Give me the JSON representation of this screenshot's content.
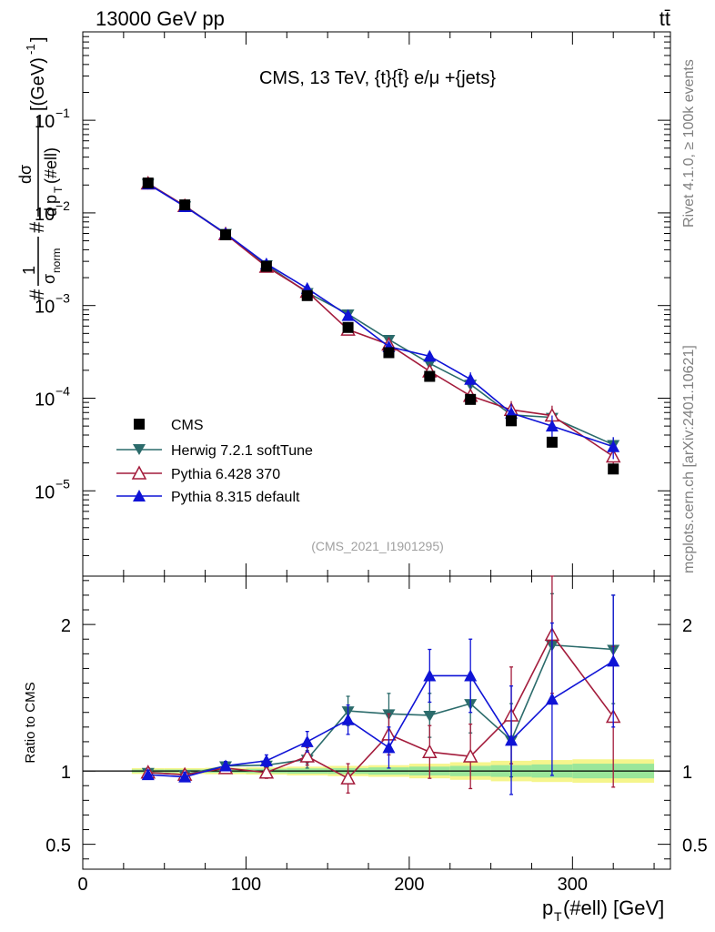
{
  "header": {
    "left_label": "13000 GeV pp",
    "right_label": "tt̄"
  },
  "side_labels": {
    "rivet": "Rivet 4.1.0, ≥ 100k events",
    "mcplots": "mcplots.cern.ch [arXiv:2401.10621]"
  },
  "chart_data": [
    {
      "type": "scatter",
      "panel": "main",
      "title": "CMS, 13 TeV, {t}{t̄} e/μ +{jets}",
      "watermark": "(CMS_2021_I1901295)",
      "ylabel": "#1/σnorm # dσ/d pT(#ell) [(GeV)^-1]",
      "ylabel_parts": {
        "hash1": "#",
        "one": "1",
        "sigma_norm": "σ",
        "norm_sub": "norm",
        "hash2": "#",
        "dsigma": "dσ",
        "d": "d",
        "p": "p",
        "T": "T",
        "ell": "(#ell)",
        "unit_open": "[(GeV)",
        "unit_exp": "-1",
        "unit_close": "]"
      },
      "yscale": "log",
      "xlim": [
        0,
        360
      ],
      "ylim": [
        1.2e-06,
        0.9
      ],
      "y_ticks": [
        {
          "mantissa": "10",
          "exp": "−5",
          "value": 1e-05
        },
        {
          "mantissa": "10",
          "exp": "−4",
          "value": 0.0001
        },
        {
          "mantissa": "10",
          "exp": "−3",
          "value": 0.001
        },
        {
          "mantissa": "10",
          "exp": "−2",
          "value": 0.01
        },
        {
          "mantissa": "10",
          "exp": "−1",
          "value": 0.1
        }
      ],
      "legend_position": "lower-left",
      "x": [
        40,
        62.5,
        87.5,
        112.5,
        137.5,
        162.5,
        187.5,
        212.5,
        237.5,
        262.5,
        287.5,
        325
      ],
      "series": [
        {
          "name": "CMS",
          "color": "#000000",
          "marker": "square",
          "values": [
            0.021,
            0.0122,
            0.0058,
            0.00265,
            0.00128,
            0.00058,
            0.00031,
            0.000172,
            9.7e-05,
            5.7e-05,
            3.35e-05,
            1.72e-05
          ],
          "xerr": [
            10,
            12.5,
            12.5,
            12.5,
            12.5,
            12.5,
            12.5,
            12.5,
            12.5,
            12.5,
            12.5,
            25
          ]
        },
        {
          "name": "Herwig 7.2.1 softTune",
          "color": "#2b6b6b",
          "marker": "triangle-down",
          "values": [
            0.0208,
            0.0119,
            0.006,
            0.00275,
            0.00138,
            0.00081,
            0.00043,
            0.000237,
            0.000141,
            6.6e-05,
            6.2e-05,
            3.15e-05
          ],
          "yerr": [
            0.0006,
            0.0003,
            0.0002,
            8e-05,
            5e-05,
            4e-05,
            3e-05,
            2e-05,
            2e-05,
            1e-05,
            1e-05,
            6e-06
          ]
        },
        {
          "name": "Pythia 6.428 370",
          "color": "#a31b3b",
          "marker": "triangle-open",
          "values": [
            0.0208,
            0.0119,
            0.0059,
            0.00263,
            0.00141,
            0.00055,
            0.00038,
            0.000195,
            0.000106,
            7.5e-05,
            6.5e-05,
            2.35e-05
          ],
          "yerr": [
            0.0006,
            0.0003,
            0.0002,
            8e-05,
            5e-05,
            4e-05,
            3e-05,
            2e-05,
            2e-05,
            1.8e-05,
            1.8e-05,
            8e-06
          ]
        },
        {
          "name": "Pythia 8.315 default",
          "color": "#0f13d6",
          "marker": "triangle",
          "values": [
            0.0205,
            0.0117,
            0.006,
            0.00282,
            0.00153,
            0.00078,
            0.00036,
            0.000284,
            0.00016,
            6.9e-05,
            5e-05,
            3e-05
          ],
          "yerr": [
            0.0006,
            0.0003,
            0.0002,
            8e-05,
            5e-05,
            4e-05,
            3e-05,
            3e-05,
            3e-05,
            1.8e-05,
            1.5e-05,
            8e-06
          ]
        }
      ]
    },
    {
      "type": "line",
      "panel": "ratio",
      "ylabel": "Ratio to CMS",
      "xlabel": "pT(#ell) [GeV]",
      "xlabel_parts": {
        "p": "p",
        "T": "T",
        "rest": "(#ell) [GeV]"
      },
      "ylim": [
        0.33,
        2.33
      ],
      "y_ticks": [
        {
          "label": "0.5",
          "value": 0.5
        },
        {
          "label": "1",
          "value": 1
        },
        {
          "label": "2",
          "value": 2
        }
      ],
      "x_ticks": [
        {
          "label": "0",
          "value": 0
        },
        {
          "label": "100",
          "value": 100
        },
        {
          "label": "200",
          "value": 200
        },
        {
          "label": "300",
          "value": 300
        }
      ],
      "xlim": [
        0,
        360
      ],
      "x": [
        40,
        62.5,
        87.5,
        112.5,
        137.5,
        162.5,
        187.5,
        212.5,
        237.5,
        262.5,
        287.5,
        325
      ],
      "band_edges": [
        30,
        50,
        75,
        100,
        125,
        150,
        175,
        200,
        225,
        250,
        275,
        300,
        350
      ],
      "uncertainty_inner": [
        0.01,
        0.01,
        0.012,
        0.015,
        0.018,
        0.02,
        0.025,
        0.03,
        0.035,
        0.04,
        0.045,
        0.05
      ],
      "uncertainty_outer": [
        0.02,
        0.02,
        0.022,
        0.025,
        0.03,
        0.035,
        0.04,
        0.05,
        0.06,
        0.07,
        0.075,
        0.08
      ],
      "series": [
        {
          "name": "Herwig 7.2.1 softTune",
          "color": "#2b6b6b",
          "marker": "triangle-down",
          "values": [
            0.99,
            0.975,
            1.035,
            1.04,
            1.08,
            1.41,
            1.39,
            1.38,
            1.46,
            1.21,
            1.86,
            1.83
          ],
          "yerr": [
            0.03,
            0.03,
            0.03,
            0.04,
            0.06,
            0.1,
            0.14,
            0.15,
            0.2,
            0.25,
            0.35,
            0.37
          ]
        },
        {
          "name": "Pythia 6.428 370",
          "color": "#a31b3b",
          "marker": "triangle-open",
          "values": [
            0.99,
            0.975,
            1.02,
            0.99,
            1.1,
            0.95,
            1.25,
            1.13,
            1.1,
            1.38,
            1.93,
            1.37
          ],
          "yerr": [
            0.03,
            0.03,
            0.03,
            0.04,
            0.06,
            0.1,
            0.14,
            0.18,
            0.22,
            0.33,
            0.4,
            0.48
          ]
        },
        {
          "name": "Pythia 8.315 default",
          "color": "#0f13d6",
          "marker": "triangle",
          "values": [
            0.975,
            0.96,
            1.035,
            1.07,
            1.2,
            1.35,
            1.16,
            1.65,
            1.65,
            1.21,
            1.49,
            1.75
          ],
          "yerr": [
            0.03,
            0.03,
            0.03,
            0.04,
            0.07,
            0.1,
            0.14,
            0.18,
            0.25,
            0.37,
            0.52,
            0.45
          ]
        }
      ]
    }
  ]
}
